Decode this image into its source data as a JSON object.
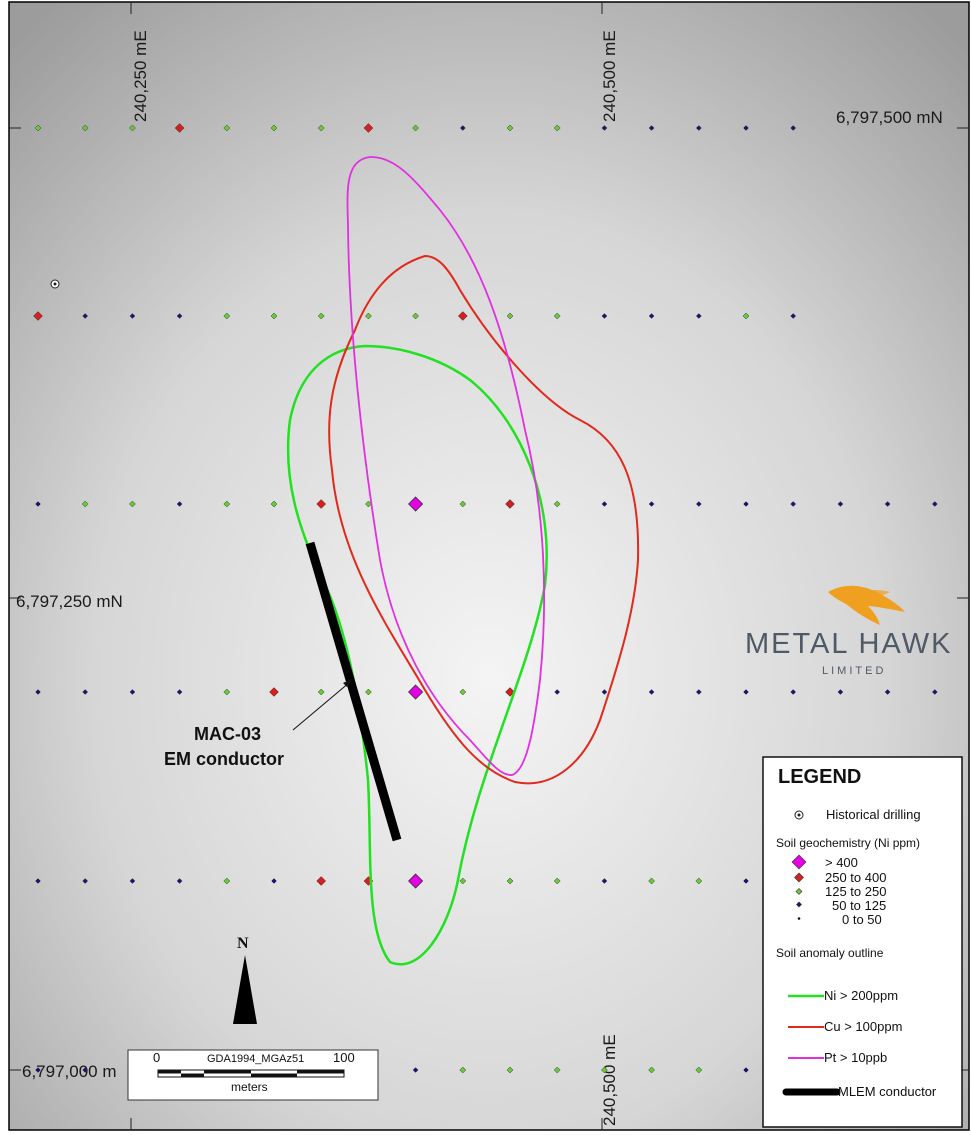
{
  "grid_labels": {
    "east_left": "240,250 mE",
    "east_right": "240,500 mE",
    "north_top": "6,797,500 mN",
    "north_mid": "6,797,250 mN",
    "north_bottom": "6,797,000 m",
    "east_bottom": "240,500 mE"
  },
  "callout": {
    "line1": "MAC-03",
    "line2": "EM conductor"
  },
  "brand": {
    "name": "METAL HAWK",
    "sub": "LIMITED"
  },
  "north_arrow": {
    "label": "N"
  },
  "scale_bar": {
    "projection": "GDA1994_MGAz51",
    "start": "0",
    "end": "100",
    "units": "meters"
  },
  "legend": {
    "title": "LEGEND",
    "historical": "Historical drilling",
    "soil_heading": "Soil geochemistry (Ni ppm)",
    "soil_classes": [
      "> 400",
      "250 to 400",
      "125 to 250",
      "50 to 125",
      "0 to  50"
    ],
    "anomaly_heading": "Soil anomaly outline",
    "outlines": [
      "Ni  > 200ppm",
      "Cu > 100ppm",
      "Pt  > 10ppb"
    ],
    "conductor": "MLEM conductor"
  },
  "colors": {
    "class_400": "#e600e6",
    "class_250": "#d42020",
    "class_125": "#66cc33",
    "class_50": "#15157a",
    "class_0": "#111111",
    "ni_outline": "#22e022",
    "cu_outline": "#e02a1c",
    "pt_outline": "#e030e0",
    "conductor": "#000000",
    "hawk": "#f0a020"
  },
  "samples": {
    "classes": [
      "400",
      "250",
      "125",
      "50"
    ],
    "rows": [
      [
        "125",
        "125",
        "125",
        "250",
        "125",
        "125",
        "125",
        "250",
        "125",
        "50",
        "125",
        "125",
        "50",
        "50",
        "50",
        "50",
        "50"
      ],
      [
        "250",
        "50",
        "50",
        "50",
        "125",
        "125",
        "125",
        "125",
        "125",
        "250",
        "125",
        "125",
        "50",
        "50",
        "50",
        "125",
        "50"
      ],
      [
        "50",
        "125",
        "125",
        "50",
        "125",
        "125",
        "250",
        "125",
        "400",
        "125",
        "250",
        "125",
        "50",
        "50",
        "50",
        "50",
        "50",
        "50",
        "50",
        "50"
      ],
      [
        "50",
        "50",
        "50",
        "50",
        "125",
        "250",
        "125",
        "125",
        "400",
        "125",
        "250",
        "50",
        "50",
        "50",
        "50",
        "50",
        "50",
        "50",
        "50",
        "50"
      ],
      [
        "50",
        "50",
        "50",
        "50",
        "125",
        "50",
        "250",
        "250",
        "400",
        "125",
        "125",
        "125",
        "50",
        "125",
        "125",
        "50"
      ],
      [
        "50",
        "50",
        "50",
        "50",
        "50",
        "50",
        "50",
        "50",
        "50",
        "125",
        "125",
        "125",
        "125",
        "125",
        "125",
        "50"
      ]
    ]
  }
}
